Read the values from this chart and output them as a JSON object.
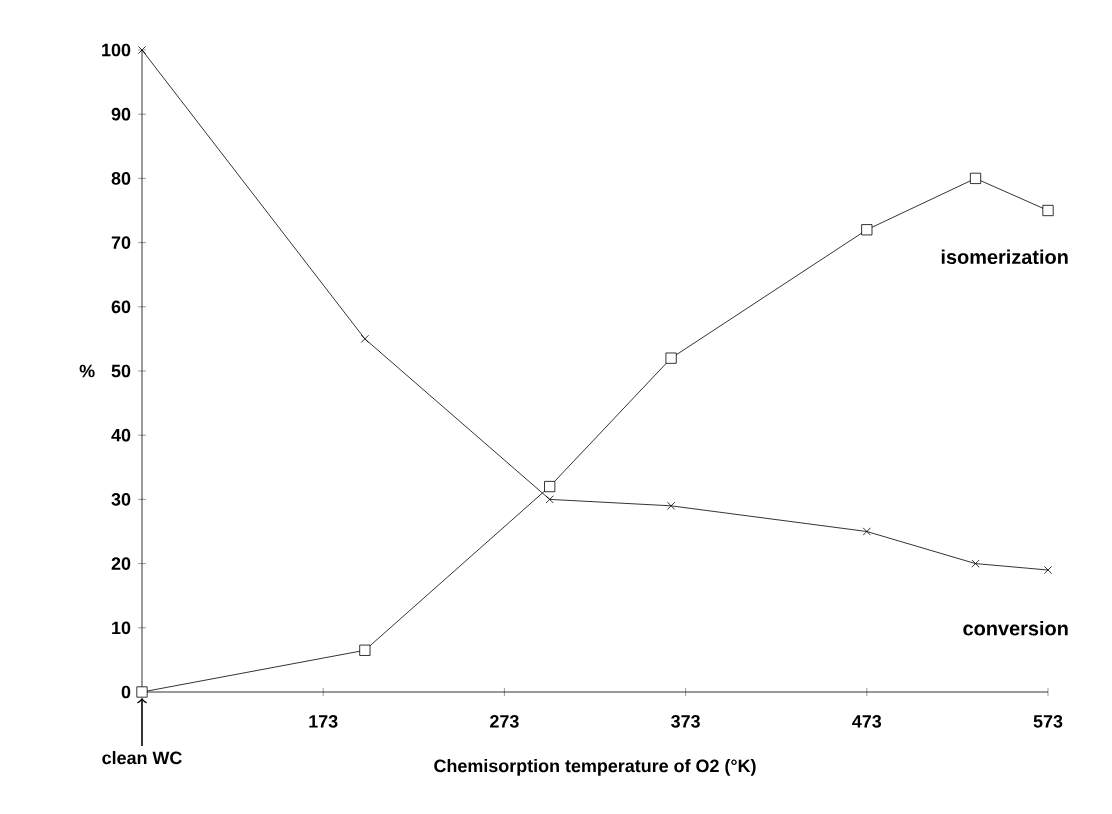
{
  "chart_data": {
    "type": "line",
    "xlabel": "Chemisorption temperature of O2 (°K)",
    "ylabel": "%",
    "xlim": [
      73,
      573
    ],
    "ylim": [
      0,
      100
    ],
    "xticks": [
      173,
      273,
      373,
      473,
      573
    ],
    "annotations": [
      {
        "text": "clean WC",
        "x": 73,
        "y": 0
      }
    ],
    "yticks": [
      0,
      10,
      20,
      30,
      40,
      50,
      60,
      70,
      80,
      90,
      100
    ],
    "x": [
      73,
      196,
      298,
      365,
      473,
      533,
      573
    ],
    "grid": false,
    "legend": false,
    "line_style": "solid",
    "series": [
      {
        "name": "isomerization",
        "color": "#000000",
        "marker": "square",
        "values": [
          0,
          6.5,
          32,
          52,
          72,
          80,
          75
        ]
      },
      {
        "name": "conversion",
        "color": "#000000",
        "marker": "cross",
        "values": [
          100,
          55,
          30,
          29,
          25,
          20,
          19
        ]
      }
    ]
  }
}
